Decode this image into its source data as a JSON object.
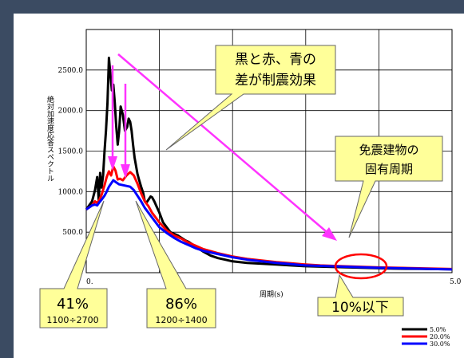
{
  "chart_data": {
    "type": "line",
    "xlabel": "周期(s)",
    "ylabel": "絶対加速度応答スペクトル",
    "xlim": [
      0,
      5
    ],
    "ylim": [
      0,
      3000
    ],
    "x_tick_labels": [
      "0.",
      "5.0"
    ],
    "y_ticks": [
      0,
      500,
      1000,
      1500,
      2000,
      2500
    ],
    "y_tick_labels": [
      "0.0",
      "500.0",
      "1000.0",
      "1500.0",
      "2000.0",
      "2500.0"
    ],
    "grid": true,
    "legend_position": "bottom-right",
    "series": [
      {
        "name": "5.0%",
        "color": "#000000",
        "x": [
          0.0,
          0.08,
          0.12,
          0.15,
          0.17,
          0.19,
          0.21,
          0.23,
          0.25,
          0.27,
          0.29,
          0.31,
          0.33,
          0.35,
          0.37,
          0.39,
          0.41,
          0.43,
          0.45,
          0.47,
          0.5,
          0.53,
          0.56,
          0.58,
          0.6,
          0.62,
          0.64,
          0.66,
          0.68,
          0.7,
          0.72,
          0.75,
          0.78,
          0.8,
          0.82,
          0.85,
          0.88,
          0.9,
          0.93,
          0.96,
          1.0,
          1.05,
          1.1,
          1.15,
          1.2,
          1.25,
          1.3,
          1.35,
          1.4,
          1.5,
          1.6,
          1.7,
          1.8,
          1.9,
          2.0,
          2.2,
          2.4,
          2.6,
          2.8,
          3.0,
          3.2,
          3.4,
          3.6,
          3.8,
          4.0,
          4.2,
          4.4,
          4.6,
          4.8,
          5.0
        ],
        "y": [
          780,
          880,
          1020,
          1180,
          900,
          1230,
          1050,
          1200,
          1500,
          1750,
          2100,
          2650,
          2450,
          2250,
          2320,
          2100,
          1800,
          1580,
          1750,
          2050,
          1950,
          1750,
          1800,
          1900,
          1860,
          1750,
          1580,
          1420,
          1320,
          1220,
          1150,
          1060,
          980,
          880,
          860,
          900,
          940,
          930,
          880,
          820,
          740,
          620,
          560,
          500,
          480,
          460,
          430,
          400,
          380,
          320,
          260,
          210,
          180,
          160,
          140,
          120,
          110,
          100,
          90,
          80,
          75,
          70,
          65,
          60,
          55,
          50,
          48,
          46,
          44,
          42
        ]
      },
      {
        "name": "20.0%",
        "color": "#ff0000",
        "x": [
          0.0,
          0.08,
          0.12,
          0.15,
          0.18,
          0.21,
          0.25,
          0.28,
          0.31,
          0.34,
          0.37,
          0.4,
          0.43,
          0.46,
          0.5,
          0.55,
          0.6,
          0.65,
          0.7,
          0.75,
          0.8,
          0.85,
          0.9,
          0.95,
          1.0,
          1.1,
          1.2,
          1.3,
          1.4,
          1.5,
          1.6,
          1.8,
          2.0,
          2.2,
          2.4,
          2.6,
          2.8,
          3.0,
          3.2,
          3.5,
          4.0,
          4.5,
          5.0
        ],
        "y": [
          780,
          830,
          880,
          860,
          900,
          960,
          1080,
          1180,
          1250,
          1200,
          1310,
          1260,
          1150,
          1160,
          1140,
          1200,
          1240,
          1200,
          1100,
          980,
          880,
          820,
          740,
          680,
          620,
          520,
          460,
          420,
          370,
          330,
          290,
          240,
          200,
          170,
          150,
          130,
          115,
          100,
          90,
          80,
          65,
          55,
          45
        ]
      },
      {
        "name": "30.0%",
        "color": "#0000ff",
        "x": [
          0.0,
          0.08,
          0.12,
          0.15,
          0.18,
          0.21,
          0.25,
          0.28,
          0.31,
          0.34,
          0.37,
          0.4,
          0.45,
          0.5,
          0.55,
          0.6,
          0.65,
          0.7,
          0.75,
          0.8,
          0.85,
          0.9,
          0.95,
          1.0,
          1.1,
          1.2,
          1.3,
          1.4,
          1.5,
          1.6,
          1.8,
          2.0,
          2.2,
          2.4,
          2.6,
          2.8,
          3.0,
          3.5,
          4.0,
          4.5,
          5.0
        ],
        "y": [
          780,
          830,
          840,
          830,
          870,
          900,
          950,
          1000,
          1060,
          1100,
          1140,
          1120,
          1090,
          1080,
          1070,
          1060,
          1020,
          950,
          880,
          800,
          740,
          680,
          620,
          560,
          490,
          430,
          380,
          340,
          300,
          270,
          230,
          190,
          160,
          140,
          120,
          105,
          90,
          75,
          60,
          50,
          40
        ]
      }
    ]
  },
  "annotations": {
    "upper_callout": "黒と赤、青の\n差が制震効果",
    "right_callout": "免震建物の\n固有周期",
    "box_41_main": "41%",
    "box_41_sub": "1100÷2700",
    "box_86_main": "86%",
    "box_86_sub": "1200÷1400",
    "box_10_main": "10%以下"
  },
  "colors": {
    "background": "#3b4b62",
    "plot_background": "#ffffff",
    "callout_fill": "#ffff99",
    "arrow": "#ff33ff",
    "ellipse": "#ff0000"
  }
}
